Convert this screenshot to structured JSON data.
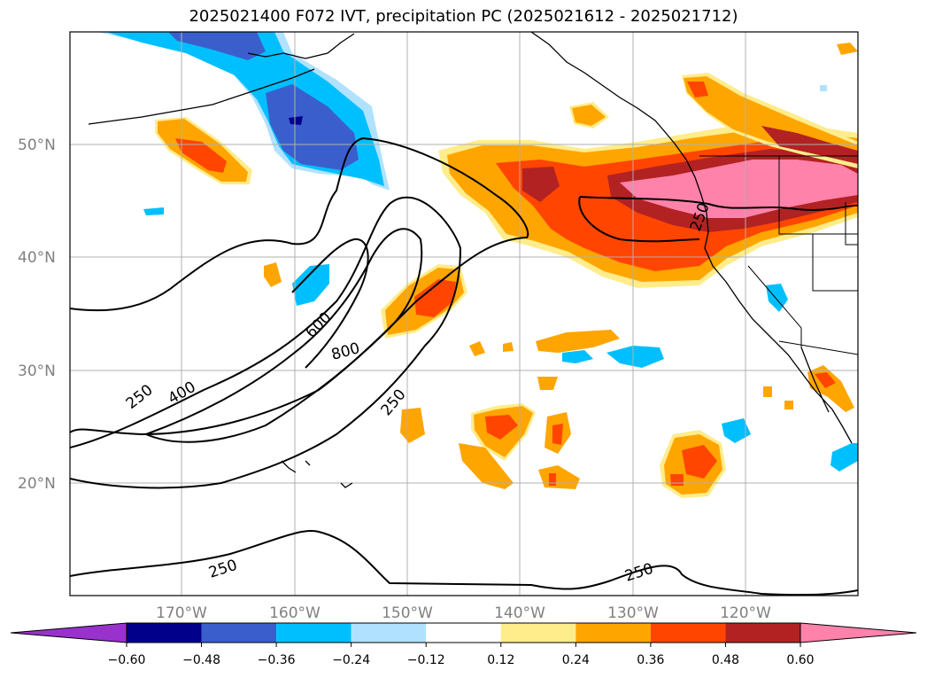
{
  "title": "2025021400 F072 IVT, precipitation PC (2025021612 - 2025021712)",
  "latitude_labels": [
    "50°N",
    "40°N",
    "30°N",
    "20°N"
  ],
  "longitude_labels": [
    "170°W",
    "160°W",
    "150°W",
    "140°W",
    "130°W",
    "120°W"
  ],
  "ivt_contour_labels": [
    "250",
    "400",
    "600",
    "800",
    "250",
    "250",
    "250",
    "250"
  ],
  "colorbar": {
    "tick_labels": [
      "−0.60",
      "−0.48",
      "−0.36",
      "−0.24",
      "−0.12",
      "0.12",
      "0.24",
      "0.36",
      "0.48",
      "0.60"
    ],
    "colors": [
      "#9932cc",
      "#00008b",
      "#3a5fcd",
      "#00bfff",
      "#b0e2ff",
      "#ffffff",
      "#ffec8b",
      "#ffa500",
      "#ff4500",
      "#b22222",
      "#ff82ab"
    ]
  }
}
